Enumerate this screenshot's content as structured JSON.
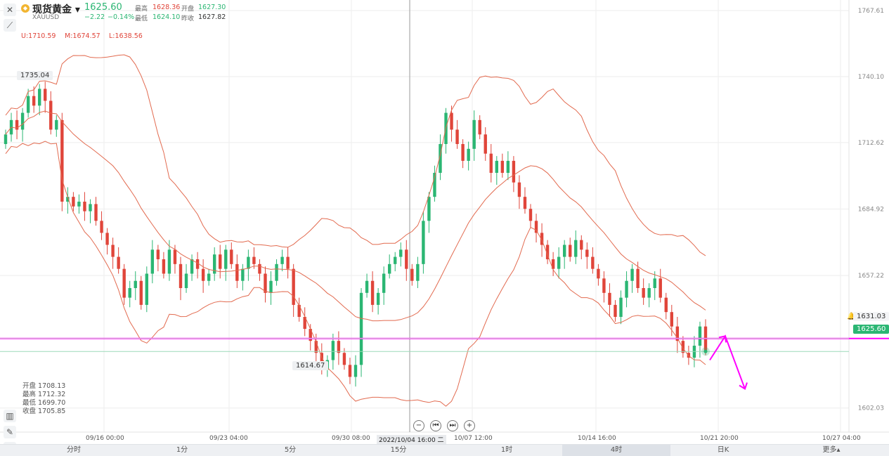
{
  "header": {
    "instrument_name": "现货黄金",
    "dropdown_caret": "▾",
    "symbol": "XAUUSD",
    "last_price": "1625.60",
    "change": "−2.22",
    "change_pct": "−0.14%",
    "high_label": "最高",
    "high_value": "1628.36",
    "open_label": "开盘",
    "open_value": "1627.30",
    "low_label": "最低",
    "low_value": "1624.10",
    "prev_close_label": "昨收",
    "prev_close_value": "1627.82",
    "logo_icon": "gold-coin-icon"
  },
  "indicator": {
    "upper": "U:1710.59",
    "middle": "M:1674.57",
    "lower": "L:1638.56"
  },
  "ohlc_box": {
    "open": "开盘 1708.13",
    "high": "最高 1712.32",
    "low": "最低 1699.70",
    "close": "收盘 1705.85"
  },
  "price_tags": {
    "alert_price": "1631.03",
    "current_price": "1625.60",
    "peak_label": "1735.04",
    "trough_label": "1614.67"
  },
  "crosshair_label": "2022/10/04 16:00 二",
  "timeframes": [
    "分时",
    "1分",
    "5分",
    "15分",
    "1时",
    "4时",
    "日K",
    "更多▴"
  ],
  "active_timeframe": "4时",
  "colors": {
    "up": "#2bb673",
    "down": "#e0453a",
    "band": "#e26a4f",
    "horizontal_line": "#ff00ff",
    "arrow": "#ff00ff",
    "grid": "#eeeeee"
  },
  "chart_data": {
    "type": "candlestick",
    "title": "现货黄金 XAUUSD 4时",
    "ylim": [
      1592,
      1772
    ],
    "y_ticks": [
      "1767.61",
      "1740.10",
      "1712.62",
      "1684.92",
      "1657.22",
      "1602.03"
    ],
    "x_ticks": [
      "09/16 00:00",
      "09/23 04:00",
      "09/30 08:00",
      "10/07 12:00",
      "10/14 16:00",
      "10/21 20:00",
      "10/27 04:00"
    ],
    "horizontal_line": 1631.0,
    "bollinger": {
      "upper_label": "U:1710.59",
      "middle_label": "M:1674.57",
      "lower_label": "L:1638.56"
    },
    "candles_open_close": [
      [
        1712,
        1716
      ],
      [
        1716,
        1722
      ],
      [
        1722,
        1718
      ],
      [
        1718,
        1725
      ],
      [
        1725,
        1732
      ],
      [
        1732,
        1728
      ],
      [
        1728,
        1735
      ],
      [
        1735,
        1730
      ],
      [
        1730,
        1718
      ],
      [
        1718,
        1722
      ],
      [
        1722,
        1688
      ],
      [
        1688,
        1690
      ],
      [
        1690,
        1686
      ],
      [
        1686,
        1688
      ],
      [
        1688,
        1684
      ],
      [
        1684,
        1687
      ],
      [
        1687,
        1680
      ],
      [
        1680,
        1675
      ],
      [
        1675,
        1670
      ],
      [
        1670,
        1665
      ],
      [
        1665,
        1660
      ],
      [
        1660,
        1648
      ],
      [
        1648,
        1652
      ],
      [
        1652,
        1655
      ],
      [
        1655,
        1645
      ],
      [
        1645,
        1658
      ],
      [
        1658,
        1668
      ],
      [
        1668,
        1664
      ],
      [
        1664,
        1658
      ],
      [
        1658,
        1668
      ],
      [
        1668,
        1662
      ],
      [
        1662,
        1652
      ],
      [
        1652,
        1658
      ],
      [
        1658,
        1664
      ],
      [
        1664,
        1660
      ],
      [
        1660,
        1655
      ],
      [
        1655,
        1658
      ],
      [
        1658,
        1666
      ],
      [
        1666,
        1660
      ],
      [
        1660,
        1668
      ],
      [
        1668,
        1662
      ],
      [
        1662,
        1655
      ],
      [
        1655,
        1660
      ],
      [
        1660,
        1665
      ],
      [
        1665,
        1662
      ],
      [
        1662,
        1658
      ],
      [
        1658,
        1650
      ],
      [
        1650,
        1655
      ],
      [
        1655,
        1662
      ],
      [
        1662,
        1665
      ],
      [
        1665,
        1660
      ],
      [
        1660,
        1645
      ],
      [
        1645,
        1640
      ],
      [
        1640,
        1635
      ],
      [
        1635,
        1630
      ],
      [
        1630,
        1625
      ],
      [
        1625,
        1618
      ],
      [
        1618,
        1622
      ],
      [
        1622,
        1630
      ],
      [
        1630,
        1625
      ],
      [
        1625,
        1620
      ],
      [
        1620,
        1615
      ],
      [
        1615,
        1620
      ],
      [
        1620,
        1650
      ],
      [
        1650,
        1655
      ],
      [
        1655,
        1645
      ],
      [
        1645,
        1650
      ],
      [
        1650,
        1658
      ],
      [
        1658,
        1662
      ],
      [
        1662,
        1665
      ],
      [
        1665,
        1668
      ],
      [
        1668,
        1660
      ],
      [
        1660,
        1655
      ],
      [
        1655,
        1662
      ],
      [
        1662,
        1680
      ],
      [
        1680,
        1690
      ],
      [
        1690,
        1700
      ],
      [
        1700,
        1712
      ],
      [
        1712,
        1725
      ],
      [
        1725,
        1718
      ],
      [
        1718,
        1712
      ],
      [
        1712,
        1705
      ],
      [
        1705,
        1710
      ],
      [
        1710,
        1722
      ],
      [
        1722,
        1716
      ],
      [
        1716,
        1708
      ],
      [
        1708,
        1700
      ],
      [
        1700,
        1705
      ],
      [
        1705,
        1700
      ],
      [
        1700,
        1705
      ],
      [
        1705,
        1696
      ],
      [
        1696,
        1690
      ],
      [
        1690,
        1685
      ],
      [
        1685,
        1680
      ],
      [
        1680,
        1675
      ],
      [
        1675,
        1670
      ],
      [
        1670,
        1664
      ],
      [
        1664,
        1660
      ],
      [
        1660,
        1665
      ],
      [
        1665,
        1670
      ],
      [
        1670,
        1665
      ],
      [
        1665,
        1672
      ],
      [
        1672,
        1668
      ],
      [
        1668,
        1665
      ],
      [
        1665,
        1660
      ],
      [
        1660,
        1656
      ],
      [
        1656,
        1650
      ],
      [
        1650,
        1645
      ],
      [
        1645,
        1640
      ],
      [
        1640,
        1648
      ],
      [
        1648,
        1655
      ],
      [
        1655,
        1660
      ],
      [
        1660,
        1652
      ],
      [
        1652,
        1648
      ],
      [
        1648,
        1652
      ],
      [
        1652,
        1656
      ],
      [
        1656,
        1648
      ],
      [
        1648,
        1642
      ],
      [
        1642,
        1636
      ],
      [
        1636,
        1630
      ],
      [
        1630,
        1625
      ],
      [
        1625,
        1623
      ],
      [
        1623,
        1628
      ],
      [
        1628,
        1636
      ],
      [
        1636,
        1626
      ]
    ]
  }
}
